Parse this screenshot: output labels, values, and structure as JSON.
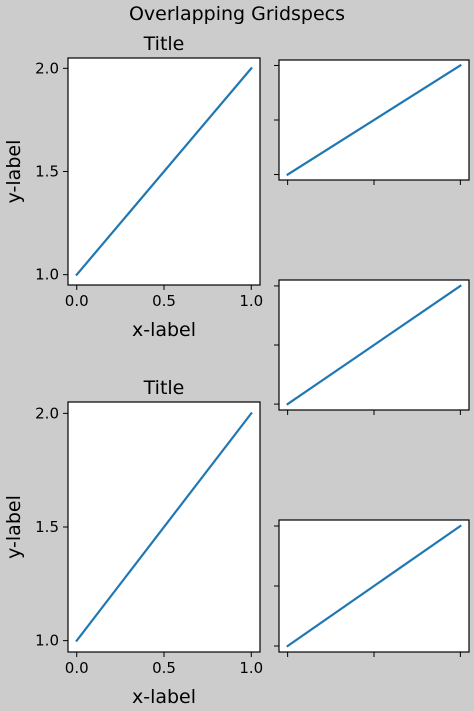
{
  "figure": {
    "suptitle": "Overlapping Gridspecs",
    "background": "#cccccc",
    "line_color": "#1f77b4"
  },
  "chart_data": [
    {
      "type": "line",
      "title": "Title",
      "xlabel": "x-label",
      "ylabel": "y-label",
      "x": [
        0,
        1
      ],
      "series": [
        {
          "values": [
            1,
            2
          ]
        }
      ],
      "xticks": [
        0.0,
        0.5,
        1.0
      ],
      "xtick_labels": [
        "0.0",
        "0.5",
        "1.0"
      ],
      "yticks": [
        1.0,
        1.5,
        2.0
      ],
      "ytick_labels": [
        "1.0",
        "1.5",
        "2.0"
      ],
      "xlim": [
        -0.05,
        1.05
      ],
      "ylim": [
        0.95,
        2.05
      ]
    },
    {
      "type": "line",
      "title": "Title",
      "xlabel": "x-label",
      "ylabel": "y-label",
      "x": [
        0,
        1
      ],
      "series": [
        {
          "values": [
            1,
            2
          ]
        }
      ],
      "xticks": [
        0.0,
        0.5,
        1.0
      ],
      "xtick_labels": [
        "0.0",
        "0.5",
        "1.0"
      ],
      "yticks": [
        1.0,
        1.5,
        2.0
      ],
      "ytick_labels": [
        "1.0",
        "1.5",
        "2.0"
      ],
      "xlim": [
        -0.05,
        1.05
      ],
      "ylim": [
        0.95,
        2.05
      ]
    },
    {
      "type": "line",
      "x": [
        0,
        1
      ],
      "series": [
        {
          "values": [
            1,
            2
          ]
        }
      ],
      "xticks": [
        0.0,
        0.5,
        1.0
      ],
      "yticks": [
        1.0,
        1.5,
        2.0
      ],
      "xlim": [
        -0.05,
        1.05
      ],
      "ylim": [
        0.95,
        2.05
      ]
    },
    {
      "type": "line",
      "x": [
        0,
        1
      ],
      "series": [
        {
          "values": [
            1,
            2
          ]
        }
      ],
      "xticks": [
        0.0,
        0.5,
        1.0
      ],
      "yticks": [
        1.0,
        1.5,
        2.0
      ],
      "xlim": [
        -0.05,
        1.05
      ],
      "ylim": [
        0.95,
        2.05
      ]
    },
    {
      "type": "line",
      "x": [
        0,
        1
      ],
      "series": [
        {
          "values": [
            1,
            2
          ]
        }
      ],
      "xticks": [
        0.0,
        0.5,
        1.0
      ],
      "yticks": [
        1.0,
        1.5,
        2.0
      ],
      "xlim": [
        -0.05,
        1.05
      ],
      "ylim": [
        0.95,
        2.05
      ]
    }
  ]
}
